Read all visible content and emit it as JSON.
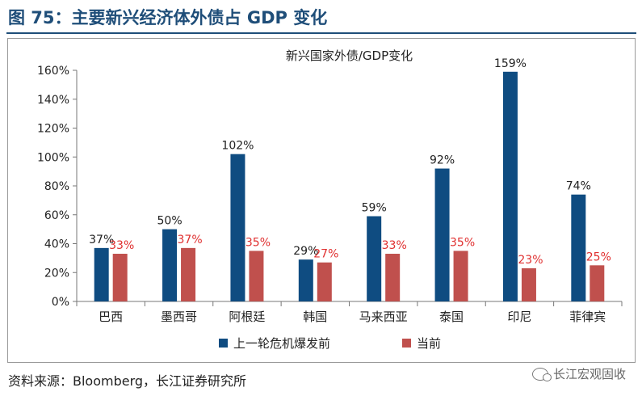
{
  "figure_title": "图 75：主要新兴经济体外债占 GDP 变化",
  "source": "资料来源：Bloomberg，长江证券研究所",
  "watermark": "长江宏观固收",
  "colors": {
    "series1": "#0f4c81",
    "series2": "#c0504d",
    "label2": "#e03030",
    "title": "#1f4e79"
  },
  "chart_data": {
    "type": "bar",
    "title": "新兴国家外债/GDP变化",
    "categories": [
      "巴西",
      "墨西哥",
      "阿根廷",
      "韩国",
      "马来西亚",
      "泰国",
      "印尼",
      "菲律宾"
    ],
    "series": [
      {
        "name": "上一轮危机爆发前",
        "values": [
          37,
          50,
          102,
          29,
          59,
          92,
          159,
          74
        ]
      },
      {
        "name": "当前",
        "values": [
          33,
          37,
          35,
          27,
          33,
          35,
          23,
          25
        ]
      }
    ],
    "data_labels_series1": [
      "37%",
      "50%",
      "102%",
      "29%",
      "59%",
      "92%",
      "159%",
      "74%"
    ],
    "data_labels_series2": [
      "33%",
      "37%",
      "35%",
      "27%",
      "33%",
      "35%",
      "23%",
      "25%"
    ],
    "y_ticks": [
      "0%",
      "20%",
      "40%",
      "60%",
      "80%",
      "100%",
      "120%",
      "140%",
      "160%"
    ],
    "ylim": [
      0,
      160
    ],
    "legend_position": "bottom",
    "grid": false
  }
}
